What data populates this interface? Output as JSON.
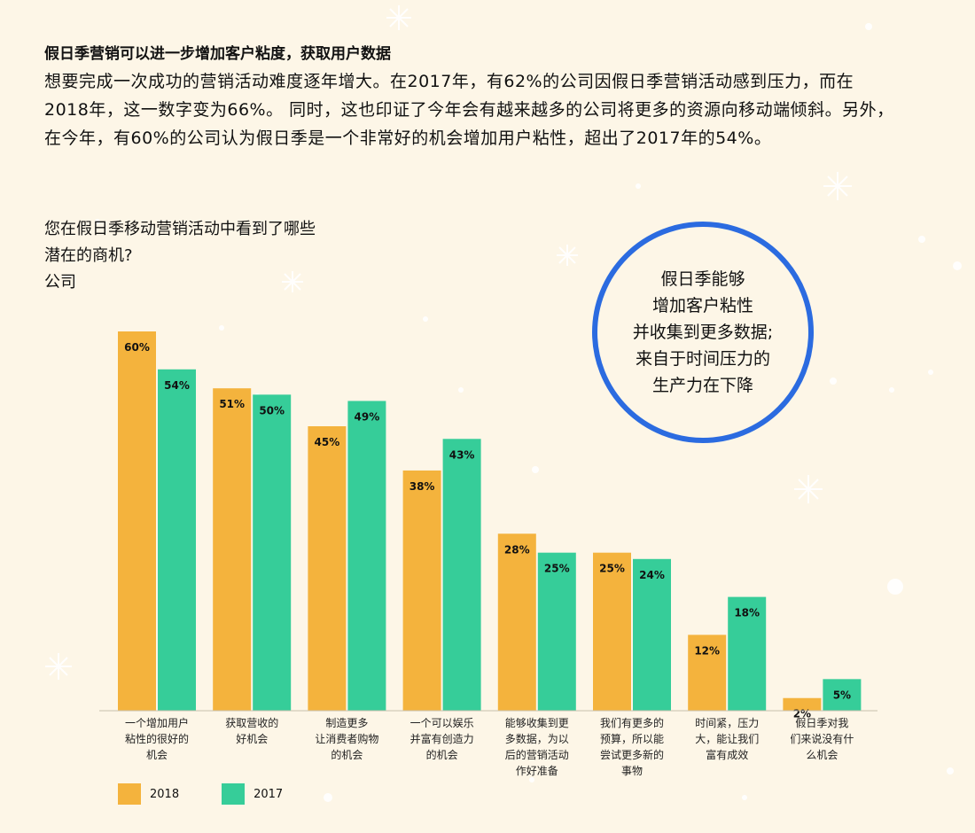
{
  "headline": "假日季营销可以进一步增加客户粘度，获取用户数据",
  "intro": "想要完成一次成功的营销活动难度逐年增大。在2017年，有62%的公司因假日季营销活动感到压力，而在2018年，这一数字变为66%。 同时，这也印证了今年会有越来越多的公司将更多的资源向移动端倾斜。另外，在今年，有60%的公司认为假日季是一个非常好的机会增加用户粘性，超出了2017年的54%。",
  "question": "您在假日季移动营销活动中看到了哪些\n潜在的商机?\n公司",
  "callout": "假日季能够\n增加客户粘性\n并收集到更多数据;\n来自于时间压力的\n生产力在下降",
  "colors": {
    "accent_2018": "#f4b33d",
    "accent_2017": "#36cd99",
    "circle": "#2b6be0",
    "background": "#fdf6e7"
  },
  "chart_data": {
    "type": "bar",
    "categories": [
      "一个增加用户\n粘性的很好的\n机会",
      "获取营收的\n好机会",
      "制造更多\n让消费者购物\n的机会",
      "一个可以娱乐\n并富有创造力\n的机会",
      "能够收集到更\n多数据，为以\n后的营销活动\n作好准备",
      "我们有更多的\n预算，所以能\n尝试更多新的\n事物",
      "时间紧，压力\n大，能让我们\n富有成效",
      "假日季对我\n们来说没有什\n么机会"
    ],
    "series": [
      {
        "name": "2018",
        "color": "#f4b33d",
        "values": [
          60,
          51,
          45,
          38,
          28,
          25,
          12,
          2
        ],
        "labels": [
          "60%",
          "51%",
          "45%",
          "38%",
          "28%",
          "25%",
          "12%",
          "2%"
        ]
      },
      {
        "name": "2017",
        "color": "#36cd99",
        "values": [
          54,
          50,
          49,
          43,
          25,
          24,
          18,
          5
        ],
        "labels": [
          "54%",
          "50%",
          "49%",
          "43%",
          "25%",
          "24%",
          "18%",
          "5%"
        ]
      }
    ],
    "ylim": [
      0,
      60
    ],
    "legend_position": "bottom-left",
    "grid": false
  }
}
